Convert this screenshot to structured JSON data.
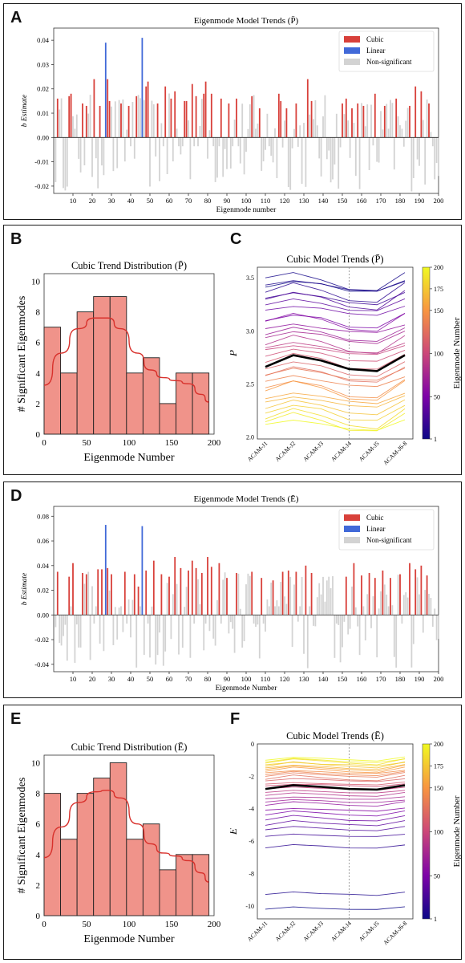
{
  "panels": {
    "A": {
      "letter": "A"
    },
    "B": {
      "letter": "B"
    },
    "C": {
      "letter": "C"
    },
    "D": {
      "letter": "D"
    },
    "E": {
      "letter": "E"
    },
    "F": {
      "letter": "F"
    }
  },
  "colors": {
    "cubic": "#d8403a",
    "linear": "#4169d8",
    "nonsig": "#d3d3d3",
    "hist_fill": "#f0938a",
    "kde": "#d8312c",
    "border": "#1a1a1a"
  },
  "chart_data": [
    {
      "id": "A",
      "type": "bar",
      "title": "Eigenmode Model Trends (P̄)",
      "xlabel": "Eigenmode number",
      "ylabel": "b Estimate",
      "xlim": [
        0,
        200
      ],
      "ylim": [
        -0.023,
        0.045
      ],
      "yticks": [
        "-0.02",
        "-0.01",
        "0.00",
        "0.01",
        "0.02",
        "0.03",
        "0.04"
      ],
      "ytick_values": [
        -0.02,
        -0.01,
        0.0,
        0.01,
        0.02,
        0.03,
        0.04
      ],
      "xticks": [
        "10",
        "20",
        "30",
        "40",
        "50",
        "60",
        "70",
        "80",
        "90",
        "100",
        "110",
        "120",
        "130",
        "140",
        "150",
        "160",
        "170",
        "180",
        "190",
        "200"
      ],
      "legend": [
        "Cubic",
        "Linear",
        "Non-significant"
      ],
      "legend_position": "top-right",
      "linear_bars": [
        {
          "x": 27,
          "value": 0.039
        },
        {
          "x": 46,
          "value": 0.041
        }
      ],
      "cubic_bars": [
        {
          "x": 2,
          "value": 0.016
        },
        {
          "x": 8,
          "value": 0.017
        },
        {
          "x": 9,
          "value": 0.018
        },
        {
          "x": 15,
          "value": 0.014
        },
        {
          "x": 17,
          "value": 0.013
        },
        {
          "x": 21,
          "value": 0.024
        },
        {
          "x": 24,
          "value": 0.013
        },
        {
          "x": 28,
          "value": 0.024
        },
        {
          "x": 29,
          "value": 0.015
        },
        {
          "x": 35,
          "value": 0.014
        },
        {
          "x": 39,
          "value": 0.013
        },
        {
          "x": 43,
          "value": 0.017
        },
        {
          "x": 48,
          "value": 0.021
        },
        {
          "x": 49,
          "value": 0.023
        },
        {
          "x": 54,
          "value": 0.014
        },
        {
          "x": 58,
          "value": 0.021
        },
        {
          "x": 61,
          "value": 0.016
        },
        {
          "x": 63,
          "value": 0.019
        },
        {
          "x": 68,
          "value": 0.015
        },
        {
          "x": 69,
          "value": 0.015
        },
        {
          "x": 72,
          "value": 0.022
        },
        {
          "x": 74,
          "value": 0.017
        },
        {
          "x": 78,
          "value": 0.018
        },
        {
          "x": 79,
          "value": 0.023
        },
        {
          "x": 82,
          "value": 0.018
        },
        {
          "x": 87,
          "value": 0.016
        },
        {
          "x": 91,
          "value": 0.014
        },
        {
          "x": 95,
          "value": 0.016
        },
        {
          "x": 103,
          "value": 0.017
        },
        {
          "x": 107,
          "value": 0.012
        },
        {
          "x": 117,
          "value": 0.018
        },
        {
          "x": 118,
          "value": 0.015
        },
        {
          "x": 121,
          "value": 0.012
        },
        {
          "x": 126,
          "value": 0.014
        },
        {
          "x": 132,
          "value": 0.024
        },
        {
          "x": 134,
          "value": 0.015
        },
        {
          "x": 150,
          "value": 0.014
        },
        {
          "x": 152,
          "value": 0.016
        },
        {
          "x": 155,
          "value": 0.012
        },
        {
          "x": 158,
          "value": 0.014
        },
        {
          "x": 161,
          "value": 0.013
        },
        {
          "x": 167,
          "value": 0.018
        },
        {
          "x": 172,
          "value": 0.013
        },
        {
          "x": 178,
          "value": 0.016
        },
        {
          "x": 185,
          "value": 0.013
        },
        {
          "x": 188,
          "value": 0.021
        },
        {
          "x": 191,
          "value": 0.019
        },
        {
          "x": 195,
          "value": 0.014
        }
      ]
    },
    {
      "id": "B",
      "type": "bar",
      "title": "Cubic Trend Distribution (P̄)",
      "xlabel": "Eigenmode Number",
      "ylabel": "# Significant Eigenmodes",
      "xlim": [
        0,
        200
      ],
      "ylim": [
        0,
        10.5
      ],
      "yticks": [
        "0",
        "2",
        "4",
        "6",
        "8",
        "10"
      ],
      "ytick_values": [
        0,
        2,
        4,
        6,
        8,
        10
      ],
      "xticks": [
        "0",
        "50",
        "100",
        "150",
        "200"
      ],
      "xtick_values": [
        0,
        50,
        100,
        150,
        200
      ],
      "bin_edges": [
        0,
        19.4,
        38.8,
        58.2,
        77.6,
        97.0,
        116.4,
        135.8,
        155.2,
        174.6,
        194.0
      ],
      "values": [
        7,
        4,
        8,
        9,
        9,
        4,
        5,
        2,
        4,
        4
      ],
      "kde": [
        [
          0,
          3.2
        ],
        [
          20,
          5.3
        ],
        [
          40,
          6.9
        ],
        [
          60,
          7.6
        ],
        [
          75,
          7.6
        ],
        [
          90,
          6.9
        ],
        [
          110,
          5.3
        ],
        [
          125,
          4.2
        ],
        [
          140,
          3.7
        ],
        [
          155,
          3.5
        ],
        [
          170,
          3.3
        ],
        [
          185,
          2.6
        ],
        [
          194,
          2.1
        ]
      ]
    },
    {
      "id": "C",
      "type": "line",
      "title": "Cubic Model Trends (P̄)",
      "xlabel": "",
      "ylabel": "P̄",
      "categories": [
        "ACAM-J1",
        "ACAM-J2",
        "ACAM-J3",
        "ACAM-J4",
        "ACAM-J5",
        "ACAM-J6-8"
      ],
      "ylim": [
        1.98,
        3.6
      ],
      "yticks": [
        "2.0",
        "2.5",
        "3.0",
        "3.5"
      ],
      "ytick_values": [
        2.0,
        2.5,
        3.0,
        3.5
      ],
      "vline_at": "ACAM-J4",
      "colorbar": {
        "label": "Eigenmode Number",
        "ticks": [
          "1",
          "50",
          "100",
          "150",
          "175",
          "200"
        ],
        "tick_values": [
          1,
          50,
          100,
          150,
          175,
          200
        ],
        "range": [
          1,
          200
        ]
      },
      "mean_line": [
        2.66,
        2.77,
        2.72,
        2.64,
        2.62,
        2.77
      ]
    },
    {
      "id": "D",
      "type": "bar",
      "title": "Eigenmode Model Trends (Ē)",
      "xlabel": "Eigenmode Number",
      "ylabel": "b Estimate",
      "xlim": [
        0,
        200
      ],
      "ylim": [
        -0.046,
        0.088
      ],
      "yticks": [
        "-0.04",
        "-0.02",
        "0.00",
        "0.02",
        "0.04",
        "0.06",
        "0.08"
      ],
      "ytick_values": [
        -0.04,
        -0.02,
        0.0,
        0.02,
        0.04,
        0.06,
        0.08
      ],
      "xticks": [
        "10",
        "20",
        "30",
        "40",
        "50",
        "60",
        "70",
        "80",
        "90",
        "100",
        "110",
        "120",
        "130",
        "140",
        "150",
        "160",
        "170",
        "180",
        "190",
        "200"
      ],
      "legend": [
        "Cubic",
        "Linear",
        "Non-significant"
      ],
      "legend_position": "top-right",
      "linear_bars": [
        {
          "x": 27,
          "value": 0.073
        },
        {
          "x": 46,
          "value": 0.072
        }
      ],
      "cubic_bars": [
        {
          "x": 2,
          "value": 0.035
        },
        {
          "x": 8,
          "value": 0.031
        },
        {
          "x": 10,
          "value": 0.042
        },
        {
          "x": 15,
          "value": 0.034
        },
        {
          "x": 17,
          "value": 0.033
        },
        {
          "x": 23,
          "value": 0.037
        },
        {
          "x": 25,
          "value": 0.037
        },
        {
          "x": 28,
          "value": 0.038
        },
        {
          "x": 30,
          "value": 0.033
        },
        {
          "x": 37,
          "value": 0.035
        },
        {
          "x": 42,
          "value": 0.033
        },
        {
          "x": 44,
          "value": 0.023
        },
        {
          "x": 48,
          "value": 0.036
        },
        {
          "x": 52,
          "value": 0.044
        },
        {
          "x": 56,
          "value": 0.033
        },
        {
          "x": 60,
          "value": 0.031
        },
        {
          "x": 63,
          "value": 0.047
        },
        {
          "x": 66,
          "value": 0.038
        },
        {
          "x": 70,
          "value": 0.036
        },
        {
          "x": 72,
          "value": 0.044
        },
        {
          "x": 74,
          "value": 0.038
        },
        {
          "x": 77,
          "value": 0.034
        },
        {
          "x": 80,
          "value": 0.047
        },
        {
          "x": 82,
          "value": 0.039
        },
        {
          "x": 86,
          "value": 0.042
        },
        {
          "x": 90,
          "value": 0.03
        },
        {
          "x": 95,
          "value": 0.034
        },
        {
          "x": 103,
          "value": 0.035
        },
        {
          "x": 108,
          "value": 0.03
        },
        {
          "x": 114,
          "value": 0.028
        },
        {
          "x": 119,
          "value": 0.035
        },
        {
          "x": 122,
          "value": 0.036
        },
        {
          "x": 126,
          "value": 0.035
        },
        {
          "x": 131,
          "value": 0.04
        },
        {
          "x": 134,
          "value": 0.034
        },
        {
          "x": 152,
          "value": 0.031
        },
        {
          "x": 156,
          "value": 0.042
        },
        {
          "x": 160,
          "value": 0.032
        },
        {
          "x": 164,
          "value": 0.034
        },
        {
          "x": 167,
          "value": 0.03
        },
        {
          "x": 171,
          "value": 0.036
        },
        {
          "x": 175,
          "value": 0.03
        },
        {
          "x": 180,
          "value": 0.033
        },
        {
          "x": 185,
          "value": 0.042
        },
        {
          "x": 188,
          "value": 0.037
        },
        {
          "x": 191,
          "value": 0.04
        },
        {
          "x": 194,
          "value": 0.032
        }
      ]
    },
    {
      "id": "E",
      "type": "bar",
      "title": "Cubic Trend Distribution (Ē)",
      "xlabel": "Eigenmode Number",
      "ylabel": "# Significant Eigenmodes",
      "xlim": [
        0,
        200
      ],
      "ylim": [
        0,
        10.5
      ],
      "yticks": [
        "0",
        "2",
        "4",
        "6",
        "8",
        "10"
      ],
      "ytick_values": [
        0,
        2,
        4,
        6,
        8,
        10
      ],
      "xticks": [
        "0",
        "50",
        "100",
        "150",
        "200"
      ],
      "xtick_values": [
        0,
        50,
        100,
        150,
        200
      ],
      "bin_edges": [
        0,
        19.4,
        38.8,
        58.2,
        77.6,
        97.0,
        116.4,
        135.8,
        155.2,
        174.6,
        194.0
      ],
      "values": [
        8,
        5,
        8,
        9,
        10,
        5,
        6,
        3,
        4,
        4
      ],
      "kde": [
        [
          0,
          3.8
        ],
        [
          20,
          5.8
        ],
        [
          40,
          7.4
        ],
        [
          60,
          8.1
        ],
        [
          75,
          8.2
        ],
        [
          90,
          7.7
        ],
        [
          110,
          6.0
        ],
        [
          125,
          4.7
        ],
        [
          140,
          4.1
        ],
        [
          155,
          3.9
        ],
        [
          170,
          3.6
        ],
        [
          185,
          2.8
        ],
        [
          194,
          2.2
        ]
      ]
    },
    {
      "id": "F",
      "type": "line",
      "title": "Cubic Model Trends (Ē)",
      "xlabel": "",
      "ylabel": "Ē",
      "categories": [
        "ACAM-J1",
        "ACAM-J2",
        "ACAM-J3",
        "ACAM-J4",
        "ACAM-J5",
        "ACAM-J6-8"
      ],
      "ylim": [
        -10.8,
        0
      ],
      "yticks": [
        "-10",
        "-8",
        "-6",
        "-4",
        "-2",
        "0"
      ],
      "ytick_values": [
        -10,
        -8,
        -6,
        -4,
        -2,
        0
      ],
      "vline_at": "ACAM-J4",
      "colorbar": {
        "label": "Eigenmode Number",
        "ticks": [
          "1",
          "50",
          "100",
          "150",
          "175",
          "200"
        ],
        "tick_values": [
          1,
          50,
          100,
          150,
          175,
          200
        ],
        "range": [
          1,
          200
        ]
      },
      "mean_line": [
        -2.78,
        -2.55,
        -2.65,
        -2.78,
        -2.82,
        -2.55
      ]
    }
  ]
}
